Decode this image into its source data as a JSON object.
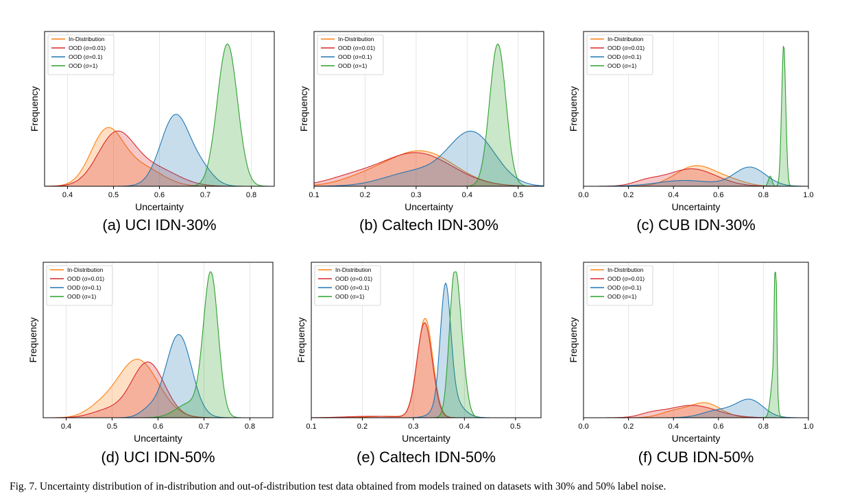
{
  "caption": "Fig. 7.  Uncertainty distribution of in-distribution and out-of-distribution test data obtained from models trained on datasets with 30% and 50% label noise.",
  "colors": {
    "in_distribution": "#ff7f0e",
    "ood_0.01": "#d62728",
    "ood_0.1": "#1f77b4",
    "ood_1": "#2ca02c"
  },
  "chart_data": [
    {
      "type": "area",
      "subcaption": "(a) UCI IDN-30%",
      "xlabel": "Uncertainty",
      "ylabel": "Frequency",
      "xlim": [
        0.35,
        0.85
      ],
      "xticks": [
        0.4,
        0.5,
        0.6,
        0.7,
        0.8
      ],
      "xtick_labels": [
        "0.4",
        "0.5",
        "0.6",
        "0.7",
        "0.8"
      ],
      "ymax": 1.0,
      "grid": true,
      "legend_position": "top-left",
      "series": [
        {
          "name": "In-Distribution",
          "color": "#ff7f0e",
          "peaks": [
            {
              "c": 0.485,
              "w": 0.035,
              "h": 0.37
            },
            {
              "c": 0.56,
              "w": 0.045,
              "h": 0.13
            }
          ]
        },
        {
          "name": "OOD (σ=0.01)",
          "color": "#d62728",
          "peaks": [
            {
              "c": 0.505,
              "w": 0.04,
              "h": 0.35
            },
            {
              "c": 0.59,
              "w": 0.05,
              "h": 0.12
            }
          ]
        },
        {
          "name": "OOD (σ=0.1)",
          "color": "#1f77b4",
          "peaks": [
            {
              "c": 0.635,
              "w": 0.032,
              "h": 0.49
            },
            {
              "c": 0.695,
              "w": 0.025,
              "h": 0.09
            }
          ]
        },
        {
          "name": "OOD (σ=1)",
          "color": "#2ca02c",
          "peaks": [
            {
              "c": 0.748,
              "w": 0.022,
              "h": 0.98
            }
          ]
        }
      ]
    },
    {
      "type": "area",
      "subcaption": "(b) Caltech IDN-30%",
      "xlabel": "Uncertainty",
      "ylabel": "Frequency",
      "xlim": [
        0.1,
        0.55
      ],
      "xticks": [
        0.1,
        0.2,
        0.3,
        0.4,
        0.5
      ],
      "xtick_labels": [
        "0.1",
        "0.2",
        "0.3",
        "0.4",
        "0.5"
      ],
      "ymax": 1.0,
      "grid": true,
      "legend_position": "top-left",
      "series": [
        {
          "name": "In-Distribution",
          "color": "#ff7f0e",
          "peaks": [
            {
              "c": 0.31,
              "w": 0.065,
              "h": 0.24
            },
            {
              "c": 0.2,
              "w": 0.05,
              "h": 0.05
            }
          ]
        },
        {
          "name": "OOD (σ=0.01)",
          "color": "#d62728",
          "peaks": [
            {
              "c": 0.3,
              "w": 0.07,
              "h": 0.23
            },
            {
              "c": 0.17,
              "w": 0.05,
              "h": 0.05
            }
          ]
        },
        {
          "name": "OOD (σ=0.1)",
          "color": "#1f77b4",
          "peaks": [
            {
              "c": 0.41,
              "w": 0.045,
              "h": 0.36
            },
            {
              "c": 0.3,
              "w": 0.06,
              "h": 0.1
            }
          ]
        },
        {
          "name": "OOD (σ=1)",
          "color": "#2ca02c",
          "peaks": [
            {
              "c": 0.46,
              "w": 0.016,
              "h": 0.98
            }
          ]
        }
      ]
    },
    {
      "type": "area",
      "subcaption": "(c) CUB IDN-30%",
      "xlabel": "Uncertainty",
      "ylabel": "Frequency",
      "xlim": [
        0.0,
        1.0
      ],
      "xticks": [
        0.0,
        0.2,
        0.4,
        0.6,
        0.8,
        1.0
      ],
      "xtick_labels": [
        "0.0",
        "0.2",
        "0.4",
        "0.6",
        "0.8",
        "1.0"
      ],
      "ymax": 1.0,
      "grid": true,
      "legend_position": "top-left",
      "series": [
        {
          "name": "In-Distribution",
          "color": "#ff7f0e",
          "peaks": [
            {
              "c": 0.5,
              "w": 0.09,
              "h": 0.14
            },
            {
              "c": 0.66,
              "w": 0.07,
              "h": 0.03
            }
          ]
        },
        {
          "name": "OOD (σ=0.01)",
          "color": "#d62728",
          "peaks": [
            {
              "c": 0.48,
              "w": 0.11,
              "h": 0.12
            },
            {
              "c": 0.28,
              "w": 0.06,
              "h": 0.03
            }
          ]
        },
        {
          "name": "OOD (σ=0.1)",
          "color": "#1f77b4",
          "peaks": [
            {
              "c": 0.74,
              "w": 0.07,
              "h": 0.13
            },
            {
              "c": 0.45,
              "w": 0.12,
              "h": 0.04
            }
          ]
        },
        {
          "name": "OOD (σ=1)",
          "color": "#2ca02c",
          "peaks": [
            {
              "c": 0.89,
              "w": 0.009,
              "h": 0.98
            },
            {
              "c": 0.83,
              "w": 0.008,
              "h": 0.07
            }
          ]
        }
      ]
    },
    {
      "type": "area",
      "subcaption": "(d) UCI IDN-50%",
      "xlabel": "Uncertainty",
      "ylabel": "Frequency",
      "xlim": [
        0.35,
        0.85
      ],
      "xticks": [
        0.4,
        0.5,
        0.6,
        0.7,
        0.8
      ],
      "xtick_labels": [
        "0.4",
        "0.5",
        "0.6",
        "0.7",
        "0.8"
      ],
      "ymax": 1.0,
      "grid": true,
      "legend_position": "top-left",
      "series": [
        {
          "name": "In-Distribution",
          "color": "#ff7f0e",
          "peaks": [
            {
              "c": 0.555,
              "w": 0.045,
              "h": 0.4
            },
            {
              "c": 0.47,
              "w": 0.03,
              "h": 0.05
            }
          ]
        },
        {
          "name": "OOD (σ=0.01)",
          "color": "#d62728",
          "peaks": [
            {
              "c": 0.578,
              "w": 0.036,
              "h": 0.38
            },
            {
              "c": 0.49,
              "w": 0.035,
              "h": 0.05
            }
          ]
        },
        {
          "name": "OOD (σ=0.1)",
          "color": "#1f77b4",
          "peaks": [
            {
              "c": 0.645,
              "w": 0.028,
              "h": 0.57
            },
            {
              "c": 0.58,
              "w": 0.02,
              "h": 0.05
            }
          ]
        },
        {
          "name": "OOD (σ=1)",
          "color": "#2ca02c",
          "peaks": [
            {
              "c": 0.715,
              "w": 0.016,
              "h": 0.97
            },
            {
              "c": 0.67,
              "w": 0.03,
              "h": 0.1
            }
          ]
        }
      ]
    },
    {
      "type": "area",
      "subcaption": "(e) Caltech IDN-50%",
      "xlabel": "Uncertainty",
      "ylabel": "Frequency",
      "xlim": [
        0.1,
        0.55
      ],
      "xticks": [
        0.1,
        0.2,
        0.3,
        0.4,
        0.5
      ],
      "xtick_labels": [
        "0.1",
        "0.2",
        "0.3",
        "0.4",
        "0.5"
      ],
      "ymax": 1.0,
      "grid": true,
      "legend_position": "top-left",
      "series": [
        {
          "name": "In-Distribution",
          "color": "#ff7f0e",
          "peaks": [
            {
              "c": 0.323,
              "w": 0.015,
              "h": 0.68
            },
            {
              "c": 0.25,
              "w": 0.04,
              "h": 0.01
            }
          ]
        },
        {
          "name": "OOD (σ=0.01)",
          "color": "#d62728",
          "peaks": [
            {
              "c": 0.322,
              "w": 0.015,
              "h": 0.65
            },
            {
              "c": 0.22,
              "w": 0.05,
              "h": 0.01
            }
          ]
        },
        {
          "name": "OOD (σ=0.1)",
          "color": "#1f77b4",
          "peaks": [
            {
              "c": 0.363,
              "w": 0.01,
              "h": 0.78
            },
            {
              "c": 0.37,
              "w": 0.022,
              "h": 0.15
            }
          ]
        },
        {
          "name": "OOD (σ=1)",
          "color": "#2ca02c",
          "peaks": [
            {
              "c": 0.38,
              "w": 0.01,
              "h": 0.92
            },
            {
              "c": 0.395,
              "w": 0.01,
              "h": 0.3
            }
          ]
        }
      ]
    },
    {
      "type": "area",
      "subcaption": "(f) CUB IDN-50%",
      "xlabel": "Uncertainty",
      "ylabel": "Frequency",
      "xlim": [
        0.0,
        1.0
      ],
      "xticks": [
        0.0,
        0.2,
        0.4,
        0.6,
        0.8,
        1.0
      ],
      "xtick_labels": [
        "0.0",
        "0.2",
        "0.4",
        "0.6",
        "0.8",
        "1.0"
      ],
      "ymax": 1.0,
      "grid": true,
      "legend_position": "top-left",
      "series": [
        {
          "name": "In-Distribution",
          "color": "#ff7f0e",
          "peaks": [
            {
              "c": 0.54,
              "w": 0.07,
              "h": 0.1
            },
            {
              "c": 0.4,
              "w": 0.06,
              "h": 0.04
            }
          ]
        },
        {
          "name": "OOD (σ=0.01)",
          "color": "#d62728",
          "peaks": [
            {
              "c": 0.48,
              "w": 0.11,
              "h": 0.085
            },
            {
              "c": 0.3,
              "w": 0.05,
              "h": 0.02
            }
          ]
        },
        {
          "name": "OOD (σ=0.1)",
          "color": "#1f77b4",
          "peaks": [
            {
              "c": 0.74,
              "w": 0.06,
              "h": 0.12
            },
            {
              "c": 0.6,
              "w": 0.07,
              "h": 0.05
            }
          ]
        },
        {
          "name": "OOD (σ=1)",
          "color": "#2ca02c",
          "peaks": [
            {
              "c": 0.854,
              "w": 0.005,
              "h": 0.98
            },
            {
              "c": 0.845,
              "w": 0.012,
              "h": 0.3
            }
          ]
        }
      ]
    }
  ]
}
